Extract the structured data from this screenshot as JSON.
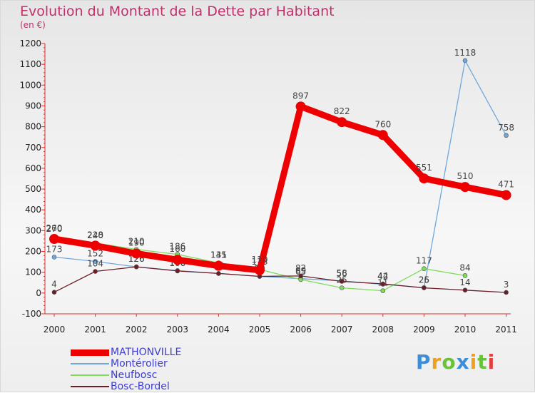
{
  "chart_data": {
    "type": "line",
    "title": "Evolution du Montant de la Dette par Habitant",
    "subtitle": "(en €)",
    "x": [
      "2000",
      "2001",
      "2002",
      "2003",
      "2004",
      "2005",
      "2006",
      "2007",
      "2008",
      "2009",
      "2010",
      "2011"
    ],
    "ylim": [
      -100,
      1200
    ],
    "yticks": [
      -100,
      0,
      100,
      200,
      300,
      400,
      500,
      600,
      700,
      800,
      900,
      1000,
      1100,
      1200
    ],
    "grid": false,
    "legend_position": "bottom-left",
    "series": [
      {
        "name": "MATHONVILLE",
        "color": "#ee0000",
        "thick": true,
        "values": [
          260,
          228,
          190,
          160,
          131,
          110,
          897,
          822,
          760,
          551,
          510,
          471
        ],
        "labels": [
          "260",
          "228",
          "190",
          "160",
          "131",
          "110",
          "897",
          "822",
          "760",
          "551",
          "510",
          "471"
        ]
      },
      {
        "name": "Montérolier",
        "color": "#6fa8dc",
        "thick": false,
        "values": [
          173,
          152,
          126,
          108,
          94,
          80,
          69,
          58,
          42,
          26,
          1118,
          758
        ],
        "labels": [
          "173",
          "152",
          "126",
          "108",
          "94",
          "80",
          "69",
          "58",
          "42",
          "26",
          "1118",
          "758"
        ]
      },
      {
        "name": "Neufbosc",
        "color": "#7edc5a",
        "thick": false,
        "values": [
          270,
          240,
          210,
          186,
          145,
          113,
          65,
          25,
          11,
          117,
          84,
          null
        ],
        "labels": [
          "270",
          "240",
          "210",
          "186",
          "145",
          "113",
          "65",
          "25",
          "11",
          "117",
          "84",
          ""
        ]
      },
      {
        "name": "Bosc-Bordel",
        "color": "#6b1e28",
        "thick": false,
        "values": [
          4,
          104,
          126,
          106,
          94,
          80,
          82,
          56,
          44,
          25,
          14,
          3
        ],
        "labels": [
          "4",
          "104",
          "126",
          "106",
          "94",
          "80",
          "82",
          "56",
          "44",
          "25",
          "14",
          "3"
        ]
      }
    ]
  },
  "logo": {
    "text": "Proxiti"
  }
}
